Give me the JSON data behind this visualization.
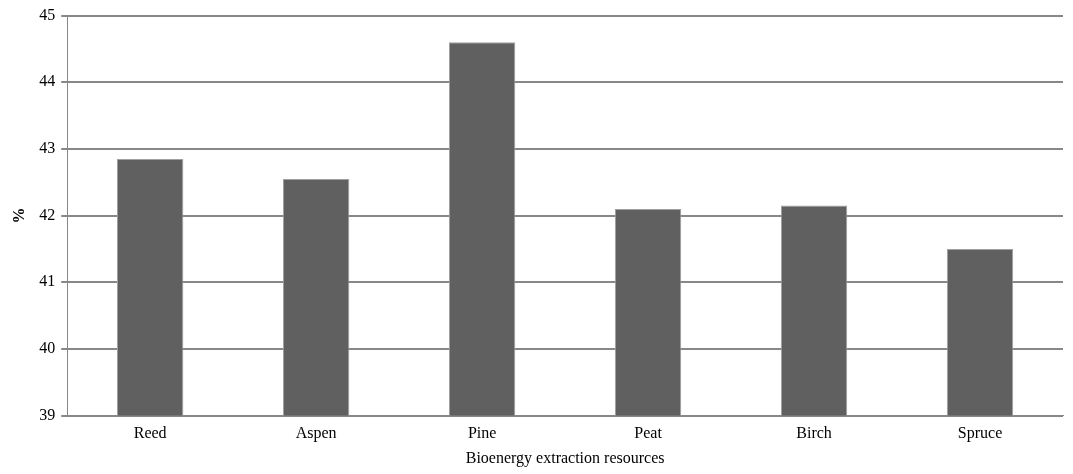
{
  "chart_data": {
    "type": "bar",
    "xlabel": "Bioenergy extraction resources",
    "ylabel": "%",
    "categories": [
      "Reed",
      "Aspen",
      "Pine",
      "Peat",
      "Birch",
      "Spruce"
    ],
    "values": [
      42.85,
      42.55,
      44.6,
      42.1,
      42.15,
      41.5
    ],
    "color": "#606060",
    "ylim": [
      39,
      45
    ],
    "yticks": [
      39,
      40,
      41,
      42,
      43,
      44,
      45
    ],
    "grid": "y"
  }
}
